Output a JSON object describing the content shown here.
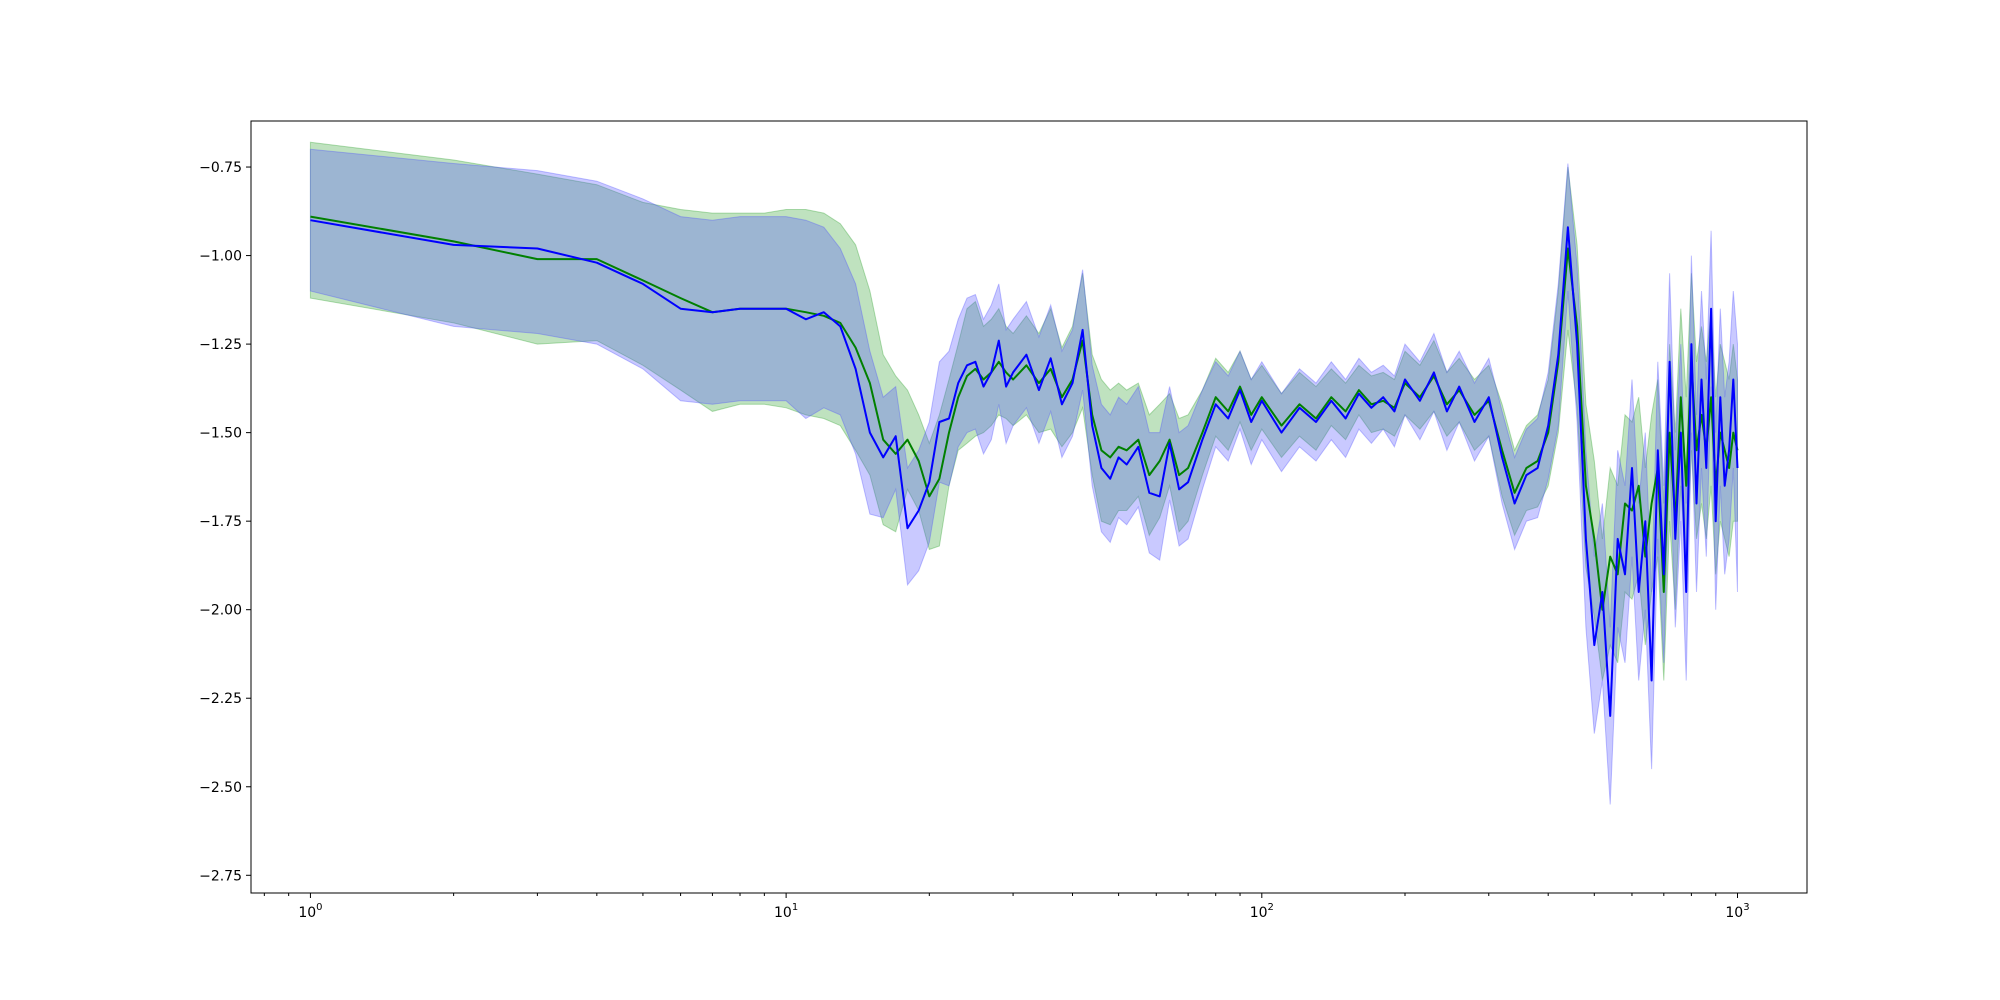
{
  "chart_data": {
    "type": "line",
    "title": "",
    "xlabel": "",
    "ylabel": "",
    "xscale": "log",
    "xlim": [
      0.75,
      1400
    ],
    "ylim": [
      -2.8,
      -0.62
    ],
    "grid": false,
    "legend": "none",
    "x_ticks": [
      {
        "value": 1,
        "base": "10",
        "exp": "0"
      },
      {
        "value": 10,
        "base": "10",
        "exp": "1"
      },
      {
        "value": 100,
        "base": "10",
        "exp": "2"
      },
      {
        "value": 1000,
        "base": "10",
        "exp": "3"
      }
    ],
    "y_ticks": [
      {
        "value": -0.75,
        "label": "−0.75"
      },
      {
        "value": -1.0,
        "label": "−1.00"
      },
      {
        "value": -1.25,
        "label": "−1.25"
      },
      {
        "value": -1.5,
        "label": "−1.50"
      },
      {
        "value": -1.75,
        "label": "−1.75"
      },
      {
        "value": -2.0,
        "label": "−2.00"
      },
      {
        "value": -2.25,
        "label": "−2.25"
      },
      {
        "value": -2.5,
        "label": "−2.50"
      },
      {
        "value": -2.75,
        "label": "−2.75"
      }
    ],
    "series": [
      {
        "color": "#008000",
        "band_color": "#2ca02c",
        "x": [
          1,
          2,
          3,
          4,
          5,
          6,
          7,
          8,
          9,
          10,
          11,
          12,
          13,
          14,
          15,
          16,
          17,
          18,
          19,
          20,
          21,
          22,
          23,
          24,
          25,
          26,
          27,
          28,
          29,
          30,
          32,
          34,
          36,
          38,
          40,
          42,
          44,
          46,
          48,
          50,
          52,
          55,
          58,
          61,
          64,
          67,
          70,
          75,
          80,
          85,
          90,
          95,
          100,
          110,
          120,
          130,
          140,
          150,
          160,
          170,
          180,
          190,
          200,
          215,
          230,
          245,
          260,
          280,
          300,
          320,
          340,
          360,
          380,
          400,
          420,
          440,
          460,
          480,
          500,
          520,
          540,
          560,
          580,
          600,
          620,
          640,
          660,
          680,
          700,
          720,
          740,
          760,
          780,
          800,
          820,
          840,
          860,
          880,
          900,
          920,
          940,
          960,
          980,
          1000
        ],
        "mean": [
          -0.89,
          -0.96,
          -1.01,
          -1.01,
          -1.07,
          -1.12,
          -1.16,
          -1.15,
          -1.15,
          -1.15,
          -1.16,
          -1.17,
          -1.19,
          -1.26,
          -1.36,
          -1.52,
          -1.56,
          -1.52,
          -1.58,
          -1.68,
          -1.63,
          -1.5,
          -1.4,
          -1.34,
          -1.32,
          -1.35,
          -1.33,
          -1.3,
          -1.33,
          -1.35,
          -1.31,
          -1.36,
          -1.32,
          -1.4,
          -1.35,
          -1.24,
          -1.45,
          -1.55,
          -1.57,
          -1.54,
          -1.55,
          -1.52,
          -1.62,
          -1.58,
          -1.52,
          -1.62,
          -1.6,
          -1.5,
          -1.4,
          -1.44,
          -1.37,
          -1.45,
          -1.4,
          -1.48,
          -1.42,
          -1.46,
          -1.4,
          -1.44,
          -1.38,
          -1.42,
          -1.41,
          -1.43,
          -1.36,
          -1.4,
          -1.34,
          -1.42,
          -1.38,
          -1.45,
          -1.41,
          -1.55,
          -1.67,
          -1.6,
          -1.58,
          -1.5,
          -1.3,
          -0.98,
          -1.2,
          -1.65,
          -1.8,
          -2.0,
          -1.85,
          -1.9,
          -1.7,
          -1.72,
          -1.65,
          -1.85,
          -1.7,
          -1.6,
          -1.95,
          -1.5,
          -1.75,
          -1.4,
          -1.65,
          -1.3,
          -1.55,
          -1.45,
          -1.55,
          -1.4,
          -1.65,
          -1.5,
          -1.55,
          -1.6,
          -1.5,
          -1.55
        ],
        "upper": [
          -0.68,
          -0.73,
          -0.77,
          -0.8,
          -0.85,
          -0.87,
          -0.88,
          -0.88,
          -0.88,
          -0.87,
          -0.87,
          -0.88,
          -0.91,
          -0.97,
          -1.1,
          -1.28,
          -1.34,
          -1.38,
          -1.45,
          -1.53,
          -1.45,
          -1.35,
          -1.25,
          -1.15,
          -1.13,
          -1.2,
          -1.18,
          -1.15,
          -1.2,
          -1.22,
          -1.17,
          -1.22,
          -1.15,
          -1.26,
          -1.2,
          -1.05,
          -1.28,
          -1.35,
          -1.38,
          -1.36,
          -1.38,
          -1.36,
          -1.45,
          -1.42,
          -1.39,
          -1.46,
          -1.45,
          -1.38,
          -1.29,
          -1.33,
          -1.27,
          -1.35,
          -1.31,
          -1.39,
          -1.33,
          -1.37,
          -1.32,
          -1.36,
          -1.31,
          -1.34,
          -1.33,
          -1.35,
          -1.27,
          -1.31,
          -1.24,
          -1.33,
          -1.29,
          -1.35,
          -1.31,
          -1.42,
          -1.55,
          -1.48,
          -1.45,
          -1.35,
          -1.1,
          -0.75,
          -0.97,
          -1.42,
          -1.58,
          -1.8,
          -1.6,
          -1.65,
          -1.45,
          -1.47,
          -1.4,
          -1.6,
          -1.45,
          -1.35,
          -1.7,
          -1.25,
          -1.5,
          -1.15,
          -1.4,
          -1.05,
          -1.3,
          -1.2,
          -1.3,
          -1.15,
          -1.4,
          -1.25,
          -1.3,
          -1.35,
          -1.25,
          -1.35
        ],
        "lower": [
          -1.12,
          -1.19,
          -1.25,
          -1.24,
          -1.31,
          -1.38,
          -1.44,
          -1.42,
          -1.42,
          -1.43,
          -1.45,
          -1.46,
          -1.48,
          -1.55,
          -1.62,
          -1.76,
          -1.78,
          -1.66,
          -1.72,
          -1.83,
          -1.82,
          -1.65,
          -1.55,
          -1.53,
          -1.51,
          -1.5,
          -1.48,
          -1.45,
          -1.46,
          -1.48,
          -1.45,
          -1.5,
          -1.49,
          -1.54,
          -1.5,
          -1.43,
          -1.62,
          -1.75,
          -1.76,
          -1.72,
          -1.72,
          -1.68,
          -1.79,
          -1.74,
          -1.65,
          -1.78,
          -1.75,
          -1.62,
          -1.51,
          -1.55,
          -1.47,
          -1.55,
          -1.49,
          -1.57,
          -1.51,
          -1.55,
          -1.48,
          -1.52,
          -1.45,
          -1.5,
          -1.49,
          -1.51,
          -1.45,
          -1.49,
          -1.44,
          -1.51,
          -1.47,
          -1.55,
          -1.51,
          -1.68,
          -1.79,
          -1.72,
          -1.71,
          -1.65,
          -1.5,
          -1.21,
          -1.43,
          -1.88,
          -2.02,
          -2.2,
          -2.1,
          -2.15,
          -1.95,
          -1.97,
          -1.9,
          -2.1,
          -1.95,
          -1.85,
          -2.2,
          -1.75,
          -2.0,
          -1.65,
          -1.9,
          -1.55,
          -1.8,
          -1.7,
          -1.8,
          -1.65,
          -1.9,
          -1.75,
          -1.8,
          -1.85,
          -1.75,
          -1.75
        ]
      },
      {
        "color": "#0000ff",
        "band_color": "#4c4cff",
        "x": [
          1,
          2,
          3,
          4,
          5,
          6,
          7,
          8,
          9,
          10,
          11,
          12,
          13,
          14,
          15,
          16,
          17,
          18,
          19,
          20,
          21,
          22,
          23,
          24,
          25,
          26,
          27,
          28,
          29,
          30,
          32,
          34,
          36,
          38,
          40,
          42,
          44,
          46,
          48,
          50,
          52,
          55,
          58,
          61,
          64,
          67,
          70,
          75,
          80,
          85,
          90,
          95,
          100,
          110,
          120,
          130,
          140,
          150,
          160,
          170,
          180,
          190,
          200,
          215,
          230,
          245,
          260,
          280,
          300,
          320,
          340,
          360,
          380,
          400,
          420,
          440,
          460,
          480,
          500,
          520,
          540,
          560,
          580,
          600,
          620,
          640,
          660,
          680,
          700,
          720,
          740,
          760,
          780,
          800,
          820,
          840,
          860,
          880,
          900,
          920,
          940,
          960,
          980,
          1000
        ],
        "mean": [
          -0.9,
          -0.97,
          -0.98,
          -1.02,
          -1.08,
          -1.15,
          -1.16,
          -1.15,
          -1.15,
          -1.15,
          -1.18,
          -1.16,
          -1.2,
          -1.32,
          -1.5,
          -1.57,
          -1.51,
          -1.77,
          -1.72,
          -1.64,
          -1.47,
          -1.46,
          -1.36,
          -1.31,
          -1.3,
          -1.37,
          -1.33,
          -1.24,
          -1.37,
          -1.33,
          -1.28,
          -1.38,
          -1.29,
          -1.42,
          -1.36,
          -1.21,
          -1.48,
          -1.6,
          -1.63,
          -1.57,
          -1.59,
          -1.54,
          -1.67,
          -1.68,
          -1.53,
          -1.66,
          -1.64,
          -1.52,
          -1.42,
          -1.46,
          -1.38,
          -1.47,
          -1.41,
          -1.5,
          -1.43,
          -1.47,
          -1.41,
          -1.46,
          -1.39,
          -1.43,
          -1.4,
          -1.44,
          -1.35,
          -1.41,
          -1.33,
          -1.44,
          -1.37,
          -1.47,
          -1.4,
          -1.57,
          -1.7,
          -1.62,
          -1.6,
          -1.48,
          -1.28,
          -0.92,
          -1.25,
          -1.8,
          -2.1,
          -1.95,
          -2.3,
          -1.8,
          -1.9,
          -1.6,
          -1.95,
          -1.75,
          -2.2,
          -1.55,
          -1.9,
          -1.3,
          -1.8,
          -1.5,
          -1.95,
          -1.25,
          -1.7,
          -1.35,
          -1.6,
          -1.15,
          -1.75,
          -1.4,
          -1.65,
          -1.55,
          -1.35,
          -1.6
        ],
        "upper": [
          -0.7,
          -0.74,
          -0.76,
          -0.79,
          -0.84,
          -0.89,
          -0.9,
          -0.89,
          -0.89,
          -0.89,
          -0.9,
          -0.92,
          -0.98,
          -1.08,
          -1.27,
          -1.4,
          -1.37,
          -1.6,
          -1.55,
          -1.47,
          -1.3,
          -1.27,
          -1.18,
          -1.12,
          -1.11,
          -1.18,
          -1.14,
          -1.08,
          -1.21,
          -1.18,
          -1.13,
          -1.23,
          -1.14,
          -1.27,
          -1.21,
          -1.04,
          -1.31,
          -1.42,
          -1.45,
          -1.4,
          -1.42,
          -1.37,
          -1.5,
          -1.5,
          -1.37,
          -1.5,
          -1.48,
          -1.38,
          -1.3,
          -1.34,
          -1.27,
          -1.35,
          -1.3,
          -1.39,
          -1.32,
          -1.36,
          -1.3,
          -1.35,
          -1.29,
          -1.33,
          -1.31,
          -1.34,
          -1.25,
          -1.3,
          -1.22,
          -1.33,
          -1.27,
          -1.36,
          -1.29,
          -1.44,
          -1.57,
          -1.49,
          -1.46,
          -1.33,
          -1.08,
          -0.74,
          -1.03,
          -1.55,
          -1.85,
          -1.7,
          -2.05,
          -1.55,
          -1.65,
          -1.35,
          -1.7,
          -1.5,
          -1.95,
          -1.3,
          -1.65,
          -1.05,
          -1.55,
          -1.25,
          -1.7,
          -1.0,
          -1.45,
          -1.1,
          -1.35,
          -0.93,
          -1.5,
          -1.15,
          -1.4,
          -1.3,
          -1.1,
          -1.25
        ],
        "lower": [
          -1.1,
          -1.2,
          -1.22,
          -1.25,
          -1.32,
          -1.41,
          -1.42,
          -1.41,
          -1.41,
          -1.41,
          -1.46,
          -1.43,
          -1.45,
          -1.56,
          -1.73,
          -1.74,
          -1.66,
          -1.93,
          -1.89,
          -1.81,
          -1.64,
          -1.65,
          -1.54,
          -1.5,
          -1.49,
          -1.56,
          -1.52,
          -1.42,
          -1.53,
          -1.48,
          -1.43,
          -1.53,
          -1.44,
          -1.57,
          -1.51,
          -1.38,
          -1.65,
          -1.78,
          -1.81,
          -1.74,
          -1.76,
          -1.71,
          -1.84,
          -1.86,
          -1.69,
          -1.82,
          -1.8,
          -1.66,
          -1.54,
          -1.58,
          -1.49,
          -1.59,
          -1.52,
          -1.61,
          -1.54,
          -1.58,
          -1.52,
          -1.57,
          -1.49,
          -1.53,
          -1.49,
          -1.54,
          -1.45,
          -1.52,
          -1.44,
          -1.55,
          -1.47,
          -1.58,
          -1.51,
          -1.7,
          -1.83,
          -1.75,
          -1.74,
          -1.63,
          -1.48,
          -1.1,
          -1.47,
          -2.05,
          -2.35,
          -2.2,
          -2.55,
          -2.05,
          -2.15,
          -1.85,
          -2.2,
          -2.0,
          -2.45,
          -1.8,
          -2.15,
          -1.55,
          -2.05,
          -1.75,
          -2.2,
          -1.5,
          -1.95,
          -1.6,
          -1.85,
          -1.37,
          -2.0,
          -1.65,
          -1.9,
          -1.8,
          -1.6,
          -1.95
        ]
      }
    ]
  }
}
